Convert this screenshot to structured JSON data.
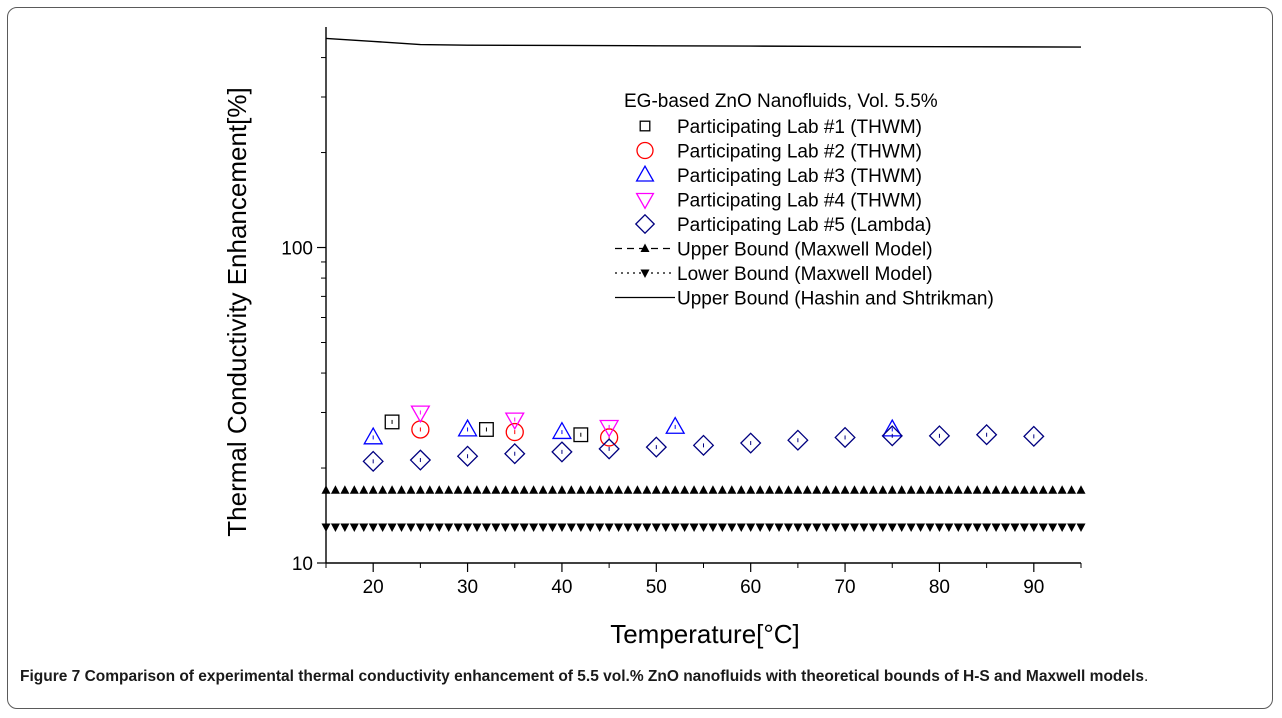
{
  "figure": {
    "caption_label": "Figure 7",
    "caption_text": "Comparison of experimental thermal conductivity enhancement of 5.5 vol.% ZnO nanofluids with theoretical bounds of H-S and Maxwell models",
    "caption_end": "."
  },
  "chart_data": {
    "type": "scatter",
    "xlabel": "Temperature[°C]",
    "ylabel": "Thermal Conductivity Enhancement[%]",
    "xlim": [
      15,
      95
    ],
    "ylim": [
      10,
      500
    ],
    "yscale": "log",
    "xticks": [
      20,
      30,
      40,
      50,
      60,
      70,
      80,
      90
    ],
    "yticks": [
      10,
      100
    ],
    "grid": false,
    "legend_title": "EG-based ZnO Nanofluids, Vol. 5.5%",
    "legend_position": "top-right",
    "series": [
      {
        "name": "Participating Lab #1 (THWM)",
        "marker": "square-open",
        "color": "#000000",
        "x": [
          22,
          32,
          42
        ],
        "y": [
          28.0,
          26.5,
          25.5
        ]
      },
      {
        "name": "Participating Lab #2 (THWM)",
        "marker": "circle-open",
        "color": "#ff0000",
        "x": [
          25,
          35,
          45
        ],
        "y": [
          26.5,
          26.0,
          25.0
        ]
      },
      {
        "name": "Participating Lab #3 (THWM)",
        "marker": "triangle-up-open",
        "color": "#0000ff",
        "x": [
          20,
          30,
          40,
          52,
          75
        ],
        "y": [
          25.0,
          26.5,
          26.0,
          27.0,
          26.5
        ]
      },
      {
        "name": "Participating Lab #4 (THWM)",
        "marker": "triangle-down-open",
        "color": "#ff00ff",
        "x": [
          25,
          35,
          45
        ],
        "y": [
          30.0,
          28.5,
          27.0
        ]
      },
      {
        "name": "Participating Lab #5 (Lambda)",
        "marker": "diamond-open",
        "color": "#000080",
        "x": [
          20,
          25,
          30,
          35,
          40,
          45,
          50,
          55,
          60,
          65,
          70,
          75,
          80,
          85,
          90
        ],
        "y": [
          21.0,
          21.2,
          21.8,
          22.2,
          22.5,
          23.0,
          23.3,
          23.6,
          24.0,
          24.5,
          25.0,
          25.3,
          25.3,
          25.5,
          25.2
        ]
      },
      {
        "name": "Upper Bound (Maxwell Model)",
        "marker": "triangle-up-filled",
        "line": "dashed",
        "color": "#000000",
        "x_range": [
          15,
          95
        ],
        "step": 1,
        "y_const": 17.0
      },
      {
        "name": "Lower Bound (Maxwell Model)",
        "marker": "triangle-down-filled",
        "line": "dotted",
        "color": "#000000",
        "x_range": [
          15,
          95
        ],
        "step": 1,
        "y_const": 13.0
      },
      {
        "name": "Upper Bound (Hashin and Shtrikman)",
        "marker": "none",
        "line": "solid",
        "color": "#000000",
        "x": [
          15,
          20,
          25,
          30,
          40,
          50,
          60,
          70,
          80,
          95
        ],
        "y": [
          460,
          450,
          440,
          438,
          437,
          436,
          435,
          434,
          433,
          432
        ]
      }
    ]
  }
}
